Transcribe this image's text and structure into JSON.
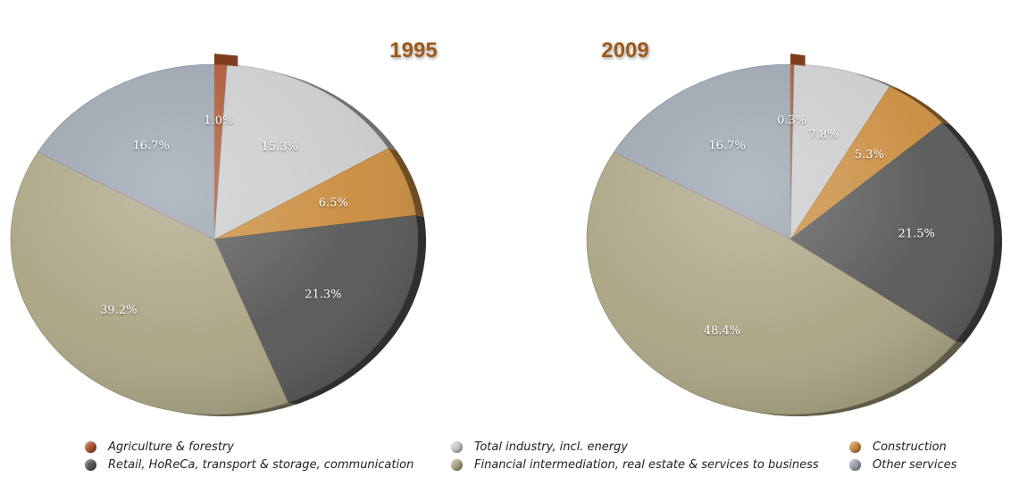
{
  "colors": {
    "agriculture": "#a9532b",
    "industry": "#c9cbcc",
    "construction": "#c98b3c",
    "retail": "#565656",
    "financial": "#aaa382",
    "other": "#98a1ad",
    "year_label": "#9c5a1e"
  },
  "chart_data": [
    {
      "type": "pie",
      "title": "1995",
      "slices": [
        {
          "category": "Agriculture & forestry",
          "label": "1.0%",
          "value": 1.0
        },
        {
          "category": "Total industry, incl. energy",
          "label": "15.3%",
          "value": 15.3
        },
        {
          "category": "Construction",
          "label": "6.5%",
          "value": 6.5
        },
        {
          "category": "Retail, HoReCa, transport & storage, communication",
          "label": "21.3%",
          "value": 21.3
        },
        {
          "category": "Financial intermediation, real estate & services to business",
          "label": "39.2%",
          "value": 39.2
        },
        {
          "category": "Other services",
          "label": "16.7%",
          "value": 16.7
        }
      ]
    },
    {
      "type": "pie",
      "title": "2009",
      "slices": [
        {
          "category": "Agriculture & forestry",
          "label": "0.3%",
          "value": 0.3
        },
        {
          "category": "Total industry, incl. energy",
          "label": "7.8%",
          "value": 7.8
        },
        {
          "category": "Construction",
          "label": "5.3%",
          "value": 5.3
        },
        {
          "category": "Retail, HoReCa, transport & storage, communication",
          "label": "21.5%",
          "value": 21.5
        },
        {
          "category": "Financial intermediation, real estate & services to business",
          "label": "48.4%",
          "value": 48.4
        },
        {
          "category": "Other services",
          "label": "16.7%",
          "value": 16.7
        }
      ]
    }
  ],
  "legend": [
    {
      "label": "Agriculture & forestry",
      "color": "#a9532b"
    },
    {
      "label": "Total industry, incl. energy",
      "color": "#c9cbcc"
    },
    {
      "label": "Construction",
      "color": "#c98b3c"
    },
    {
      "label": "Retail, HoReCa, transport & storage, communication",
      "color": "#565656"
    },
    {
      "label": "Financial intermediation, real estate & services to business",
      "color": "#aaa382"
    },
    {
      "label": "Other services",
      "color": "#98a1ad"
    }
  ]
}
